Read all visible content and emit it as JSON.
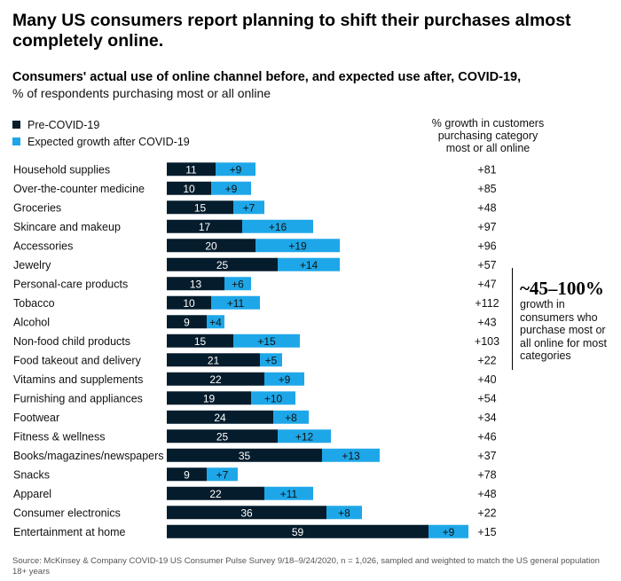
{
  "title": "Many US consumers report planning to shift their purchases almost completely online.",
  "subtitle": "Consumers' actual use of online channel before, and expected use after, COVID-19,",
  "subtitle2": "% of respondents purchasing most or all online",
  "legend": {
    "pre": "Pre-COVID-19",
    "post": "Expected growth after COVID-19"
  },
  "growth_header": [
    "% growth in customers",
    "purchasing category",
    "most or all online"
  ],
  "callout": {
    "big": "~45–100%",
    "text": "growth in consumers who purchase most or all online for most categories"
  },
  "source": "Source: McKinsey & Company COVID-19 US Consumer Pulse Survey 9/18–9/24/2020, n = 1,026, sampled and weighted to match the US general population 18+ years",
  "colors": {
    "pre": "#051c2c",
    "post": "#1ea7e8"
  },
  "chart_data": {
    "type": "bar",
    "orientation": "horizontal",
    "stacked": true,
    "categories": [
      "Household supplies",
      "Over-the-counter medicine",
      "Groceries",
      "Skincare and makeup",
      "Accessories",
      "Jewelry",
      "Personal-care products",
      "Tobacco",
      "Alcohol",
      "Non-food child products",
      "Food takeout and delivery",
      "Vitamins and supplements",
      "Furnishing and appliances",
      "Footwear",
      "Fitness & wellness",
      "Books/magazines/newspapers",
      "Snacks",
      "Apparel",
      "Consumer electronics",
      "Entertainment at home"
    ],
    "series": [
      {
        "name": "Pre-COVID-19",
        "values": [
          11,
          10,
          15,
          17,
          20,
          25,
          13,
          10,
          9,
          15,
          21,
          22,
          19,
          24,
          25,
          35,
          9,
          22,
          36,
          59
        ]
      },
      {
        "name": "Expected growth after COVID-19",
        "values": [
          9,
          9,
          7,
          16,
          19,
          14,
          6,
          11,
          4,
          15,
          5,
          9,
          10,
          8,
          12,
          13,
          7,
          11,
          8,
          9
        ]
      }
    ],
    "growth_pct": [
      81,
      85,
      48,
      97,
      96,
      57,
      47,
      112,
      43,
      103,
      22,
      40,
      54,
      34,
      46,
      37,
      78,
      48,
      22,
      15
    ],
    "growth_labels": [
      "+81",
      "+85",
      "+48",
      "+97",
      "+96",
      "+57",
      "+47",
      "+112",
      "+43",
      "+103",
      "+22",
      "+40",
      "+54",
      "+34",
      "+46",
      "+37",
      "+78",
      "+48",
      "+22",
      "+15"
    ],
    "xlim": [
      0,
      70
    ]
  }
}
